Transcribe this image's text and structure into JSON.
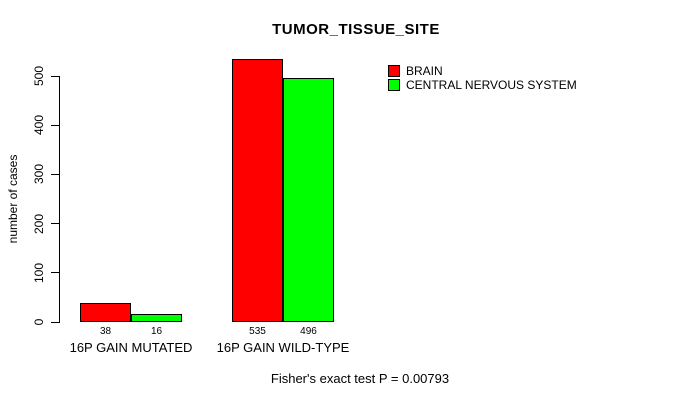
{
  "title": "TUMOR_TISSUE_SITE",
  "y_axis": {
    "label": "number of cases",
    "ticks": [
      0,
      100,
      200,
      300,
      400,
      500
    ]
  },
  "legend": {
    "position": "top-right",
    "items": [
      {
        "label": "BRAIN",
        "color": "#ff0000"
      },
      {
        "label": "CENTRAL NERVOUS SYSTEM",
        "color": "#00ff00"
      }
    ]
  },
  "footer": "Fisher's exact test P = 0.00793",
  "chart_data": {
    "type": "bar",
    "title": "TUMOR_TISSUE_SITE",
    "categories": [
      "16P GAIN MUTATED",
      "16P GAIN WILD-TYPE"
    ],
    "series": [
      {
        "name": "BRAIN",
        "color": "#ff0000",
        "values": [
          38,
          535
        ]
      },
      {
        "name": "CENTRAL NERVOUS SYSTEM",
        "color": "#00ff00",
        "values": [
          16,
          496
        ]
      }
    ],
    "bar_value_labels": [
      [
        38,
        16
      ],
      [
        535,
        496
      ]
    ],
    "xlabel": "",
    "ylabel": "number of cases",
    "ylim": [
      0,
      500
    ],
    "grid": false,
    "legend_position": "top-right",
    "annotation": "Fisher's exact test P = 0.00793"
  }
}
